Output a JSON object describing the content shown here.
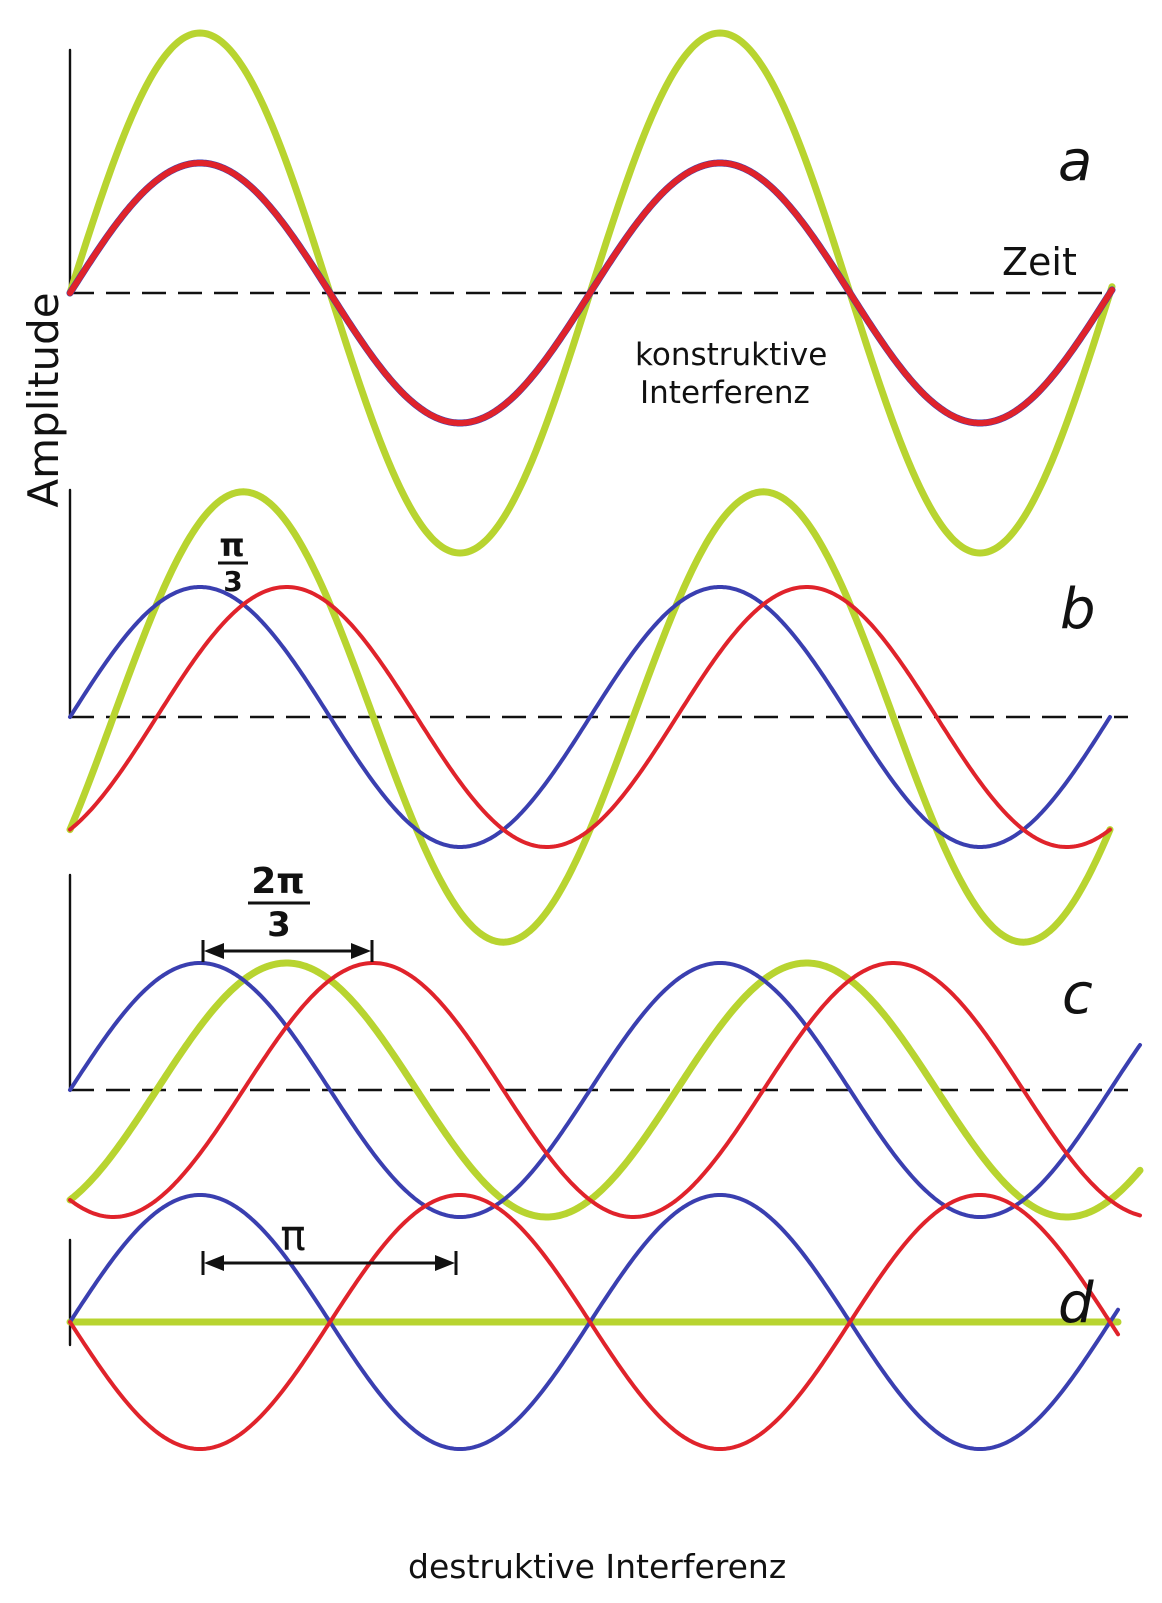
{
  "labels": {
    "y_axis": "Amplitude",
    "time": "Zeit",
    "constructive": [
      "konstruktive",
      "Interferenz"
    ],
    "destructive": "destruktive Interferenz"
  },
  "colors": {
    "blue": "#3a3fb0",
    "red": "#e0232b",
    "green": "#b8d430",
    "axis": "#111111"
  },
  "panels": [
    {
      "letter": "a",
      "phase_shift_rad": 0,
      "phase_label": null,
      "waves": [
        {
          "color": "green",
          "amplitude": 2,
          "phase": 0,
          "stroke": 7
        },
        {
          "color": "blue",
          "amplitude": 1,
          "phase": 0,
          "stroke": 7
        },
        {
          "color": "red",
          "amplitude": 1,
          "phase": 0,
          "stroke": 6
        }
      ]
    },
    {
      "letter": "b",
      "phase_shift_rad": 1.0472,
      "phase_label": {
        "num": "π",
        "den": "3"
      },
      "waves": [
        {
          "color": "green",
          "amplitude": 1.732,
          "phase": -0.5236,
          "stroke": 7
        },
        {
          "color": "blue",
          "amplitude": 1,
          "phase": 0,
          "stroke": 4
        },
        {
          "color": "red",
          "amplitude": 1,
          "phase": -1.0472,
          "stroke": 4
        }
      ]
    },
    {
      "letter": "c",
      "phase_shift_rad": 2.0944,
      "phase_label": {
        "num": "2π",
        "den": "3"
      },
      "waves": [
        {
          "color": "green",
          "amplitude": 1,
          "phase": -1.0472,
          "stroke": 7
        },
        {
          "color": "blue",
          "amplitude": 1,
          "phase": 0,
          "stroke": 4
        },
        {
          "color": "red",
          "amplitude": 1,
          "phase": -2.0944,
          "stroke": 4
        }
      ]
    },
    {
      "letter": "d",
      "phase_shift_rad": 3.1416,
      "phase_label": {
        "num": "π"
      },
      "waves": [
        {
          "color": "green",
          "amplitude": 0,
          "phase": 0,
          "stroke": 7
        },
        {
          "color": "blue",
          "amplitude": 1,
          "phase": 0,
          "stroke": 4
        },
        {
          "color": "red",
          "amplitude": 1,
          "phase": -3.1416,
          "stroke": 4
        }
      ]
    }
  ]
}
